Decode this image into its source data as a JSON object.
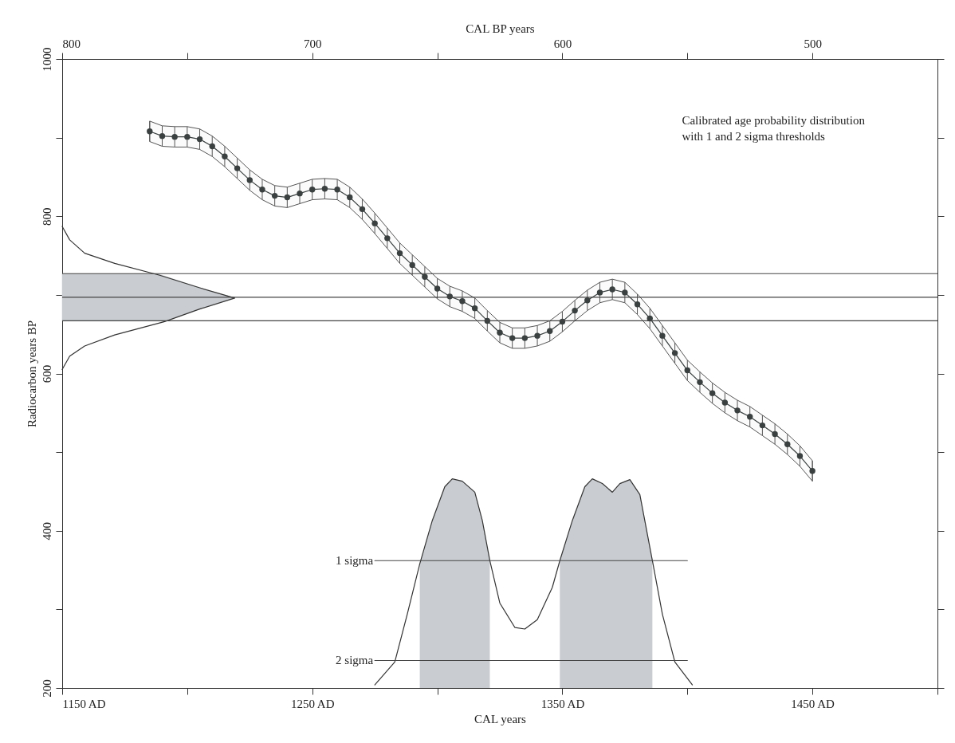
{
  "chart_data": {
    "type": "line",
    "xlabel": "CAL years",
    "x2label": "CAL BP years",
    "ylabel": "Radiocarbon years BP",
    "annotations": [
      "Calibrated age probability distribution\nwith 1 and 2 sigma thresholds"
    ],
    "xlim": [
      1150,
      1500
    ],
    "xticks": [
      {
        "value": 1150,
        "label": "1150 AD"
      },
      {
        "value": 1200,
        "label": null
      },
      {
        "value": 1250,
        "label": "1250 AD"
      },
      {
        "value": 1300,
        "label": null
      },
      {
        "value": 1350,
        "label": "1350 AD"
      },
      {
        "value": 1400,
        "label": null
      },
      {
        "value": 1450,
        "label": "1450 AD"
      },
      {
        "value": 1500,
        "label": null
      }
    ],
    "x2lim": [
      800,
      450
    ],
    "x2ticks": [
      800,
      {
        "value": 750,
        "label": null
      },
      700,
      {
        "value": 650,
        "label": null
      },
      600,
      {
        "value": 550,
        "label": null
      },
      500
    ],
    "ylim": [
      200,
      1000
    ],
    "yticks": [
      200,
      {
        "value": 300,
        "label": null
      },
      400,
      {
        "value": 500,
        "label": null
      },
      600,
      {
        "value": 700,
        "label": null
      },
      800,
      {
        "value": 900,
        "label": null
      },
      1000
    ],
    "ref_lines": [
      {
        "axis": "y",
        "value": 727,
        "color": "#444444"
      },
      {
        "axis": "y",
        "value": 697,
        "color": "#444444"
      },
      {
        "axis": "y",
        "value": 667,
        "color": "#444444"
      }
    ],
    "series": [
      {
        "type": "area",
        "color": "#c9ccd1",
        "x": [
          1150,
          1188,
          1205,
          1219,
          1205,
          1191,
          1150
        ],
        "values": [
          727,
          727,
          709,
          696,
          682,
          667,
          667
        ]
      },
      {
        "type": "area",
        "color": "#c9ccd1",
        "x": [
          1293,
          1298,
          1303,
          1306,
          1310,
          1315,
          1318,
          1321
        ],
        "values": [
          358,
          413,
          456,
          466,
          463,
          449,
          413,
          362
        ]
      },
      {
        "type": "area",
        "color": "#c9ccd1",
        "x": [
          1349,
          1354,
          1359,
          1362,
          1366,
          1370,
          1373,
          1377,
          1381,
          1386
        ],
        "values": [
          362,
          413,
          456,
          466,
          460,
          449,
          460,
          465,
          446,
          362
        ]
      },
      {
        "color": "#333333",
        "marker": "none",
        "x": [
          1150,
          1153,
          1159,
          1171,
          1189,
          1205,
          1219,
          1205,
          1191,
          1171,
          1159,
          1153,
          1150
        ],
        "values": [
          787,
          770,
          753,
          740,
          725,
          709,
          696,
          682,
          666,
          649,
          635,
          622,
          605
        ]
      },
      {
        "color": "#333333",
        "marker": "none",
        "x": [
          1275,
          1283,
          1288,
          1293,
          1298,
          1303,
          1306,
          1310,
          1315,
          1318,
          1321,
          1325,
          1331,
          1335,
          1340,
          1346,
          1349,
          1354,
          1359,
          1362,
          1366,
          1370,
          1373,
          1377,
          1381,
          1386,
          1390,
          1395,
          1402
        ],
        "values": [
          204,
          233,
          294,
          358,
          413,
          456,
          466,
          463,
          449,
          413,
          362,
          308,
          277,
          275,
          287,
          328,
          362,
          413,
          456,
          466,
          460,
          449,
          460,
          465,
          446,
          362,
          294,
          233,
          204
        ]
      },
      {
        "name": "1 sigma",
        "color": "#444444",
        "marker": "none",
        "x": [
          1275,
          1400
        ],
        "values": [
          362,
          362
        ]
      },
      {
        "name": "2 sigma",
        "color": "#444444",
        "marker": "none",
        "x": [
          1275,
          1400
        ],
        "values": [
          235,
          235
        ]
      },
      {
        "color": "#3a3f3f",
        "marker": "circle",
        "errors": [
          13,
          13,
          13,
          13,
          13,
          13,
          13,
          13,
          13,
          13,
          13,
          13,
          13,
          13,
          13,
          13,
          13,
          13,
          13,
          13,
          13,
          13,
          13,
          13,
          13,
          13,
          13,
          13,
          13,
          13,
          13,
          13,
          13,
          13,
          13,
          13,
          13,
          13,
          13,
          13,
          13,
          13,
          13,
          13,
          13,
          13,
          13,
          13,
          13,
          13,
          13,
          13,
          13,
          13
        ],
        "x": [
          1185,
          1190,
          1195,
          1200,
          1205,
          1210,
          1215,
          1220,
          1225,
          1230,
          1235,
          1240,
          1245,
          1250,
          1255,
          1260,
          1265,
          1270,
          1275,
          1280,
          1285,
          1290,
          1295,
          1300,
          1305,
          1310,
          1315,
          1320,
          1325,
          1330,
          1335,
          1340,
          1345,
          1350,
          1355,
          1360,
          1365,
          1370,
          1375,
          1380,
          1385,
          1390,
          1395,
          1400,
          1405,
          1410,
          1415,
          1420,
          1425,
          1430,
          1435,
          1440,
          1445,
          1450
        ],
        "values": [
          908,
          902,
          901,
          901,
          898,
          889,
          876,
          861,
          846,
          834,
          826,
          824,
          829,
          834,
          835,
          834,
          824,
          809,
          791,
          772,
          753,
          738,
          723,
          708,
          698,
          692,
          683,
          667,
          652,
          645,
          645,
          648,
          654,
          666,
          680,
          693,
          703,
          707,
          703,
          688,
          670,
          648,
          626,
          604,
          589,
          575,
          563,
          553,
          545,
          534,
          523,
          510,
          495,
          476
        ],
        "upper": [
          921,
          915,
          914,
          914,
          911,
          902,
          889,
          874,
          859,
          847,
          839,
          837,
          842,
          847,
          848,
          847,
          837,
          822,
          804,
          785,
          766,
          751,
          736,
          721,
          711,
          705,
          696,
          680,
          665,
          658,
          658,
          661,
          667,
          679,
          693,
          706,
          716,
          720,
          716,
          701,
          683,
          661,
          639,
          617,
          602,
          588,
          576,
          566,
          558,
          547,
          536,
          523,
          508,
          489
        ],
        "lower": [
          895,
          889,
          888,
          888,
          885,
          876,
          863,
          848,
          833,
          821,
          813,
          811,
          816,
          821,
          822,
          821,
          811,
          796,
          778,
          759,
          740,
          725,
          710,
          695,
          685,
          679,
          670,
          654,
          639,
          632,
          632,
          635,
          641,
          653,
          667,
          680,
          690,
          694,
          690,
          675,
          657,
          635,
          613,
          591,
          576,
          562,
          550,
          540,
          532,
          521,
          510,
          497,
          482,
          463
        ]
      }
    ]
  }
}
